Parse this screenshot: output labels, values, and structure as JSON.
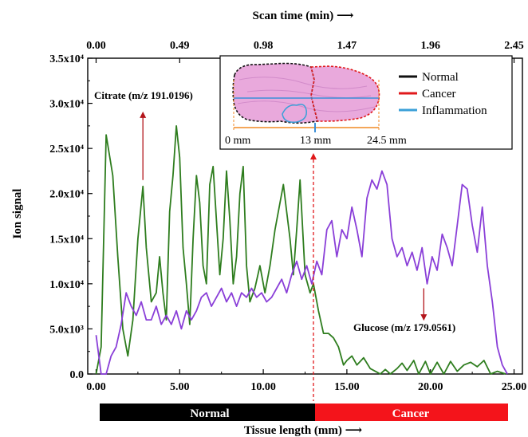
{
  "chart_data": {
    "type": "line",
    "xlabel": "Tissue length (mm)",
    "ylabel": "Ion signal",
    "top_axis_label": "Scan time (min)",
    "xlim": [
      -0.5,
      25.5
    ],
    "ylim": [
      0,
      35000
    ],
    "x_ticks": [
      {
        "value": 0,
        "label": "0.00"
      },
      {
        "value": 5,
        "label": "5.00"
      },
      {
        "value": 10,
        "label": "10.00"
      },
      {
        "value": 15,
        "label": "15.00"
      },
      {
        "value": 20,
        "label": "20.00"
      },
      {
        "value": 25,
        "label": "25.00"
      }
    ],
    "top_ticks": [
      {
        "value": 0,
        "label": "0.00"
      },
      {
        "value": 5,
        "label": "0.49"
      },
      {
        "value": 10,
        "label": "0.98"
      },
      {
        "value": 15,
        "label": "1.47"
      },
      {
        "value": 20,
        "label": "1.96"
      },
      {
        "value": 25,
        "label": "2.45"
      }
    ],
    "y_ticks": [
      {
        "value": 0,
        "label": "0.0"
      },
      {
        "value": 5000,
        "label": "5.0x10³"
      },
      {
        "value": 10000,
        "label": "1.0x10⁴"
      },
      {
        "value": 15000,
        "label": "1.5x10⁴"
      },
      {
        "value": 20000,
        "label": "2.0x10⁴"
      },
      {
        "value": 25000,
        "label": "2.5x10⁴"
      },
      {
        "value": 30000,
        "label": "3.0x10⁴"
      },
      {
        "value": 35000,
        "label": "3.5x10⁴"
      }
    ],
    "series": [
      {
        "name": "",
        "color": "#2e7d1e",
        "points": [
          [
            0,
            0
          ],
          [
            0.3,
            3000
          ],
          [
            0.6,
            26500
          ],
          [
            1.0,
            22000
          ],
          [
            1.3,
            13000
          ],
          [
            1.6,
            5000
          ],
          [
            1.9,
            2000
          ],
          [
            2.2,
            6000
          ],
          [
            2.5,
            15000
          ],
          [
            2.8,
            20800
          ],
          [
            3.0,
            14000
          ],
          [
            3.3,
            8000
          ],
          [
            3.6,
            9000
          ],
          [
            3.8,
            13000
          ],
          [
            4.0,
            9000
          ],
          [
            4.2,
            6000
          ],
          [
            4.4,
            18000
          ],
          [
            4.6,
            22000
          ],
          [
            4.8,
            27500
          ],
          [
            5.0,
            24000
          ],
          [
            5.2,
            14000
          ],
          [
            5.4,
            10000
          ],
          [
            5.6,
            5500
          ],
          [
            5.8,
            15000
          ],
          [
            6.0,
            22000
          ],
          [
            6.2,
            19000
          ],
          [
            6.4,
            12000
          ],
          [
            6.6,
            10000
          ],
          [
            6.8,
            21000
          ],
          [
            7.0,
            23000
          ],
          [
            7.2,
            17000
          ],
          [
            7.4,
            11000
          ],
          [
            7.6,
            15000
          ],
          [
            7.8,
            22500
          ],
          [
            8.0,
            17000
          ],
          [
            8.2,
            10000
          ],
          [
            8.4,
            13000
          ],
          [
            8.6,
            20000
          ],
          [
            8.8,
            23000
          ],
          [
            9.0,
            12000
          ],
          [
            9.2,
            8000
          ],
          [
            9.5,
            9500
          ],
          [
            9.8,
            12000
          ],
          [
            10.1,
            9000
          ],
          [
            10.4,
            12000
          ],
          [
            10.7,
            16000
          ],
          [
            11.0,
            19000
          ],
          [
            11.2,
            21000
          ],
          [
            11.4,
            18000
          ],
          [
            11.6,
            15000
          ],
          [
            11.8,
            11000
          ],
          [
            12.0,
            16000
          ],
          [
            12.2,
            21500
          ],
          [
            12.5,
            11000
          ],
          [
            12.8,
            9000
          ],
          [
            13.0,
            10000
          ],
          [
            13.3,
            7000
          ],
          [
            13.6,
            4500
          ],
          [
            13.9,
            4500
          ],
          [
            14.2,
            4000
          ],
          [
            14.5,
            3000
          ],
          [
            14.8,
            1000
          ],
          [
            15.0,
            1500
          ],
          [
            15.3,
            2000
          ],
          [
            15.6,
            1000
          ],
          [
            16.0,
            1800
          ],
          [
            16.4,
            600
          ],
          [
            16.8,
            200
          ],
          [
            17.0,
            0
          ],
          [
            17.3,
            500
          ],
          [
            17.6,
            0
          ],
          [
            18.0,
            600
          ],
          [
            18.3,
            1200
          ],
          [
            18.6,
            400
          ],
          [
            19.0,
            1500
          ],
          [
            19.3,
            0
          ],
          [
            19.7,
            1400
          ],
          [
            20.0,
            0
          ],
          [
            20.4,
            1300
          ],
          [
            20.8,
            0
          ],
          [
            21.2,
            1400
          ],
          [
            21.6,
            300
          ],
          [
            22.0,
            1000
          ],
          [
            22.4,
            1300
          ],
          [
            22.8,
            800
          ],
          [
            23.2,
            1500
          ],
          [
            23.6,
            0
          ],
          [
            24.0,
            300
          ],
          [
            24.5,
            0
          ]
        ]
      },
      {
        "name": "",
        "color": "#8a3fd8",
        "points": [
          [
            0,
            4300
          ],
          [
            0.3,
            0
          ],
          [
            0.6,
            0
          ],
          [
            0.9,
            2000
          ],
          [
            1.2,
            3000
          ],
          [
            1.5,
            5500
          ],
          [
            1.8,
            9000
          ],
          [
            2.1,
            7500
          ],
          [
            2.4,
            6500
          ],
          [
            2.7,
            8000
          ],
          [
            3.0,
            6000
          ],
          [
            3.3,
            6000
          ],
          [
            3.6,
            7500
          ],
          [
            3.9,
            5500
          ],
          [
            4.2,
            6500
          ],
          [
            4.5,
            5500
          ],
          [
            4.8,
            7000
          ],
          [
            5.1,
            5000
          ],
          [
            5.4,
            7000
          ],
          [
            5.7,
            6000
          ],
          [
            6.0,
            7000
          ],
          [
            6.3,
            8500
          ],
          [
            6.6,
            9000
          ],
          [
            6.9,
            7500
          ],
          [
            7.2,
            8500
          ],
          [
            7.5,
            9500
          ],
          [
            7.8,
            8000
          ],
          [
            8.1,
            9000
          ],
          [
            8.4,
            7500
          ],
          [
            8.7,
            9000
          ],
          [
            9.0,
            8500
          ],
          [
            9.3,
            9500
          ],
          [
            9.6,
            8500
          ],
          [
            9.9,
            9000
          ],
          [
            10.2,
            8000
          ],
          [
            10.5,
            8500
          ],
          [
            10.8,
            9500
          ],
          [
            11.1,
            10500
          ],
          [
            11.4,
            9000
          ],
          [
            11.7,
            11000
          ],
          [
            12.0,
            12500
          ],
          [
            12.3,
            10500
          ],
          [
            12.6,
            12000
          ],
          [
            12.9,
            10000
          ],
          [
            13.2,
            12500
          ],
          [
            13.5,
            11000
          ],
          [
            13.8,
            16000
          ],
          [
            14.1,
            17000
          ],
          [
            14.4,
            13000
          ],
          [
            14.7,
            16000
          ],
          [
            15.0,
            15000
          ],
          [
            15.3,
            18500
          ],
          [
            15.6,
            16000
          ],
          [
            15.9,
            13000
          ],
          [
            16.2,
            19500
          ],
          [
            16.5,
            21500
          ],
          [
            16.8,
            20500
          ],
          [
            17.1,
            22500
          ],
          [
            17.4,
            21000
          ],
          [
            17.7,
            15000
          ],
          [
            18.0,
            13000
          ],
          [
            18.3,
            14000
          ],
          [
            18.6,
            12000
          ],
          [
            18.9,
            13500
          ],
          [
            19.2,
            11500
          ],
          [
            19.5,
            14000
          ],
          [
            19.8,
            10000
          ],
          [
            20.1,
            13000
          ],
          [
            20.4,
            11500
          ],
          [
            20.7,
            15500
          ],
          [
            21.0,
            14000
          ],
          [
            21.3,
            12000
          ],
          [
            21.6,
            16500
          ],
          [
            21.9,
            21000
          ],
          [
            22.2,
            20500
          ],
          [
            22.5,
            16500
          ],
          [
            22.8,
            13500
          ],
          [
            23.1,
            18500
          ],
          [
            23.4,
            12000
          ],
          [
            23.7,
            8000
          ],
          [
            24.0,
            3000
          ],
          [
            24.3,
            1000
          ],
          [
            24.6,
            0
          ]
        ]
      }
    ],
    "annotations": {
      "citrate": {
        "text": "Citrate (m/z 191.0196)",
        "x": 2.8,
        "arrow_from": 21500,
        "arrow_to": 29000
      },
      "glucose": {
        "text": "Glucose (m/z 179.0561)",
        "x": 19.6,
        "arrow_from": 9500,
        "arrow_to": 6000
      },
      "boundary_x": 13
    },
    "inset": {
      "scale_labels": [
        "0 mm",
        "13 mm",
        "24.5 mm"
      ],
      "legend": [
        {
          "name": "Normal",
          "color": "#111111"
        },
        {
          "name": "Cancer",
          "color": "#e0191b"
        },
        {
          "name": "Inflammation",
          "color": "#3ba0d8"
        }
      ]
    },
    "bars": [
      {
        "label": "Normal",
        "color": "#000000"
      },
      {
        "label": "Cancer",
        "color": "#f4141b"
      }
    ]
  }
}
